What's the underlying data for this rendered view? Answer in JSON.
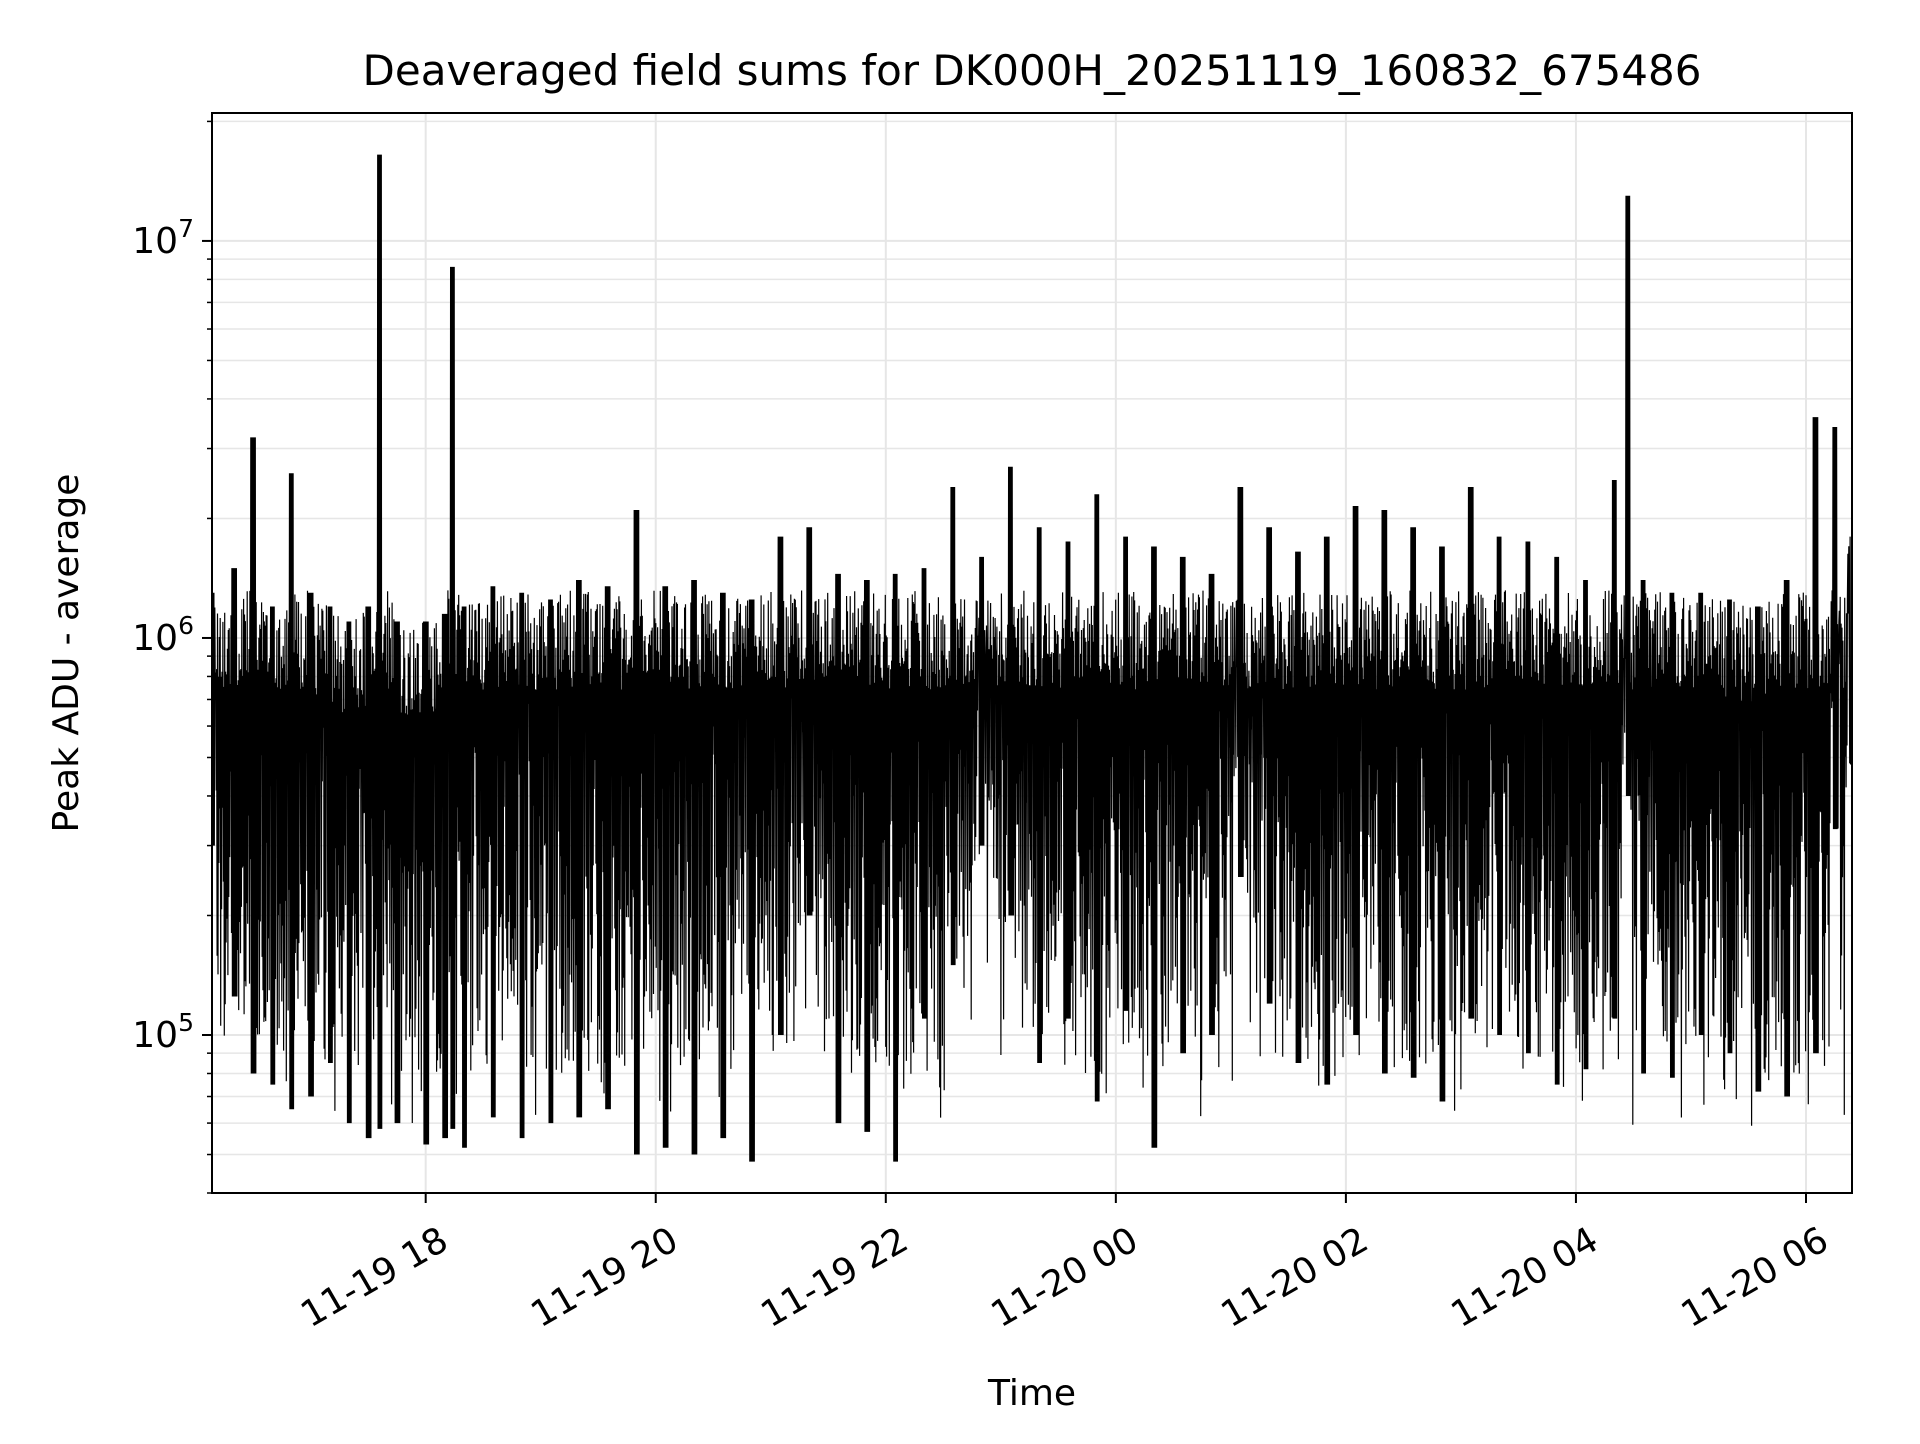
{
  "chart_data": {
    "type": "line",
    "title": "Deaveraged field sums for DK000H_20251119_160832_675486",
    "xlabel": "Time",
    "ylabel": "Peak ADU - average",
    "yscale": "log",
    "ylim": [
      40000,
      21000000
    ],
    "xlim": [
      "2025-11-19T16:08:32",
      "2025-11-20T06:24:00"
    ],
    "grid": true,
    "line_color": "#000000",
    "grid_color": "#e6e6e6",
    "x_ticks": [
      {
        "value": "2025-11-19T18:00:00",
        "label": "11-19 18"
      },
      {
        "value": "2025-11-19T20:00:00",
        "label": "11-19 20"
      },
      {
        "value": "2025-11-19T22:00:00",
        "label": "11-19 22"
      },
      {
        "value": "2025-11-20T00:00:00",
        "label": "11-20 00"
      },
      {
        "value": "2025-11-20T02:00:00",
        "label": "11-20 02"
      },
      {
        "value": "2025-11-20T04:00:00",
        "label": "11-20 04"
      },
      {
        "value": "2025-11-20T06:00:00",
        "label": "11-20 06"
      }
    ],
    "y_ticks": [
      {
        "value": 100000,
        "base": "10",
        "exp": "5"
      },
      {
        "value": 1000000,
        "base": "10",
        "exp": "6"
      },
      {
        "value": 10000000,
        "base": "10",
        "exp": "7"
      }
    ],
    "series": [
      {
        "x": [
          "2025-11-19T16:08:32",
          "2025-11-19T16:20:00",
          "2025-11-19T16:30:00",
          "2025-11-19T16:40:00",
          "2025-11-19T16:50:00",
          "2025-11-19T17:00:00",
          "2025-11-19T17:10:00",
          "2025-11-19T17:20:00",
          "2025-11-19T17:30:00",
          "2025-11-19T17:36:00",
          "2025-11-19T17:45:00",
          "2025-11-19T18:00:00",
          "2025-11-19T18:10:00",
          "2025-11-19T18:14:00",
          "2025-11-19T18:20:00",
          "2025-11-19T18:35:00",
          "2025-11-19T18:50:00",
          "2025-11-19T19:05:00",
          "2025-11-19T19:20:00",
          "2025-11-19T19:35:00",
          "2025-11-19T19:50:00",
          "2025-11-19T20:05:00",
          "2025-11-19T20:20:00",
          "2025-11-19T20:35:00",
          "2025-11-19T20:50:00",
          "2025-11-19T21:05:00",
          "2025-11-19T21:20:00",
          "2025-11-19T21:35:00",
          "2025-11-19T21:50:00",
          "2025-11-19T22:05:00",
          "2025-11-19T22:20:00",
          "2025-11-19T22:35:00",
          "2025-11-19T22:50:00",
          "2025-11-19T23:05:00",
          "2025-11-19T23:20:00",
          "2025-11-19T23:35:00",
          "2025-11-19T23:50:00",
          "2025-11-20T00:05:00",
          "2025-11-20T00:20:00",
          "2025-11-20T00:35:00",
          "2025-11-20T00:50:00",
          "2025-11-20T01:05:00",
          "2025-11-20T01:20:00",
          "2025-11-20T01:35:00",
          "2025-11-20T01:50:00",
          "2025-11-20T02:05:00",
          "2025-11-20T02:20:00",
          "2025-11-20T02:35:00",
          "2025-11-20T02:50:00",
          "2025-11-20T03:05:00",
          "2025-11-20T03:20:00",
          "2025-11-20T03:35:00",
          "2025-11-20T03:50:00",
          "2025-11-20T04:05:00",
          "2025-11-20T04:20:00",
          "2025-11-20T04:27:00",
          "2025-11-20T04:35:00",
          "2025-11-20T04:50:00",
          "2025-11-20T05:05:00",
          "2025-11-20T05:20:00",
          "2025-11-20T05:35:00",
          "2025-11-20T05:50:00",
          "2025-11-20T06:05:00",
          "2025-11-20T06:15:00",
          "2025-11-20T06:24:00"
        ],
        "hi": [
          1300000,
          1500000,
          3200000,
          1200000,
          2600000,
          1300000,
          1200000,
          1100000,
          1200000,
          16500000,
          1100000,
          1100000,
          1150000,
          8600000,
          1200000,
          1350000,
          1300000,
          1250000,
          1400000,
          1350000,
          2100000,
          1350000,
          1400000,
          1300000,
          1250000,
          1800000,
          1900000,
          1450000,
          1400000,
          1450000,
          1500000,
          2400000,
          1600000,
          2700000,
          1900000,
          1750000,
          2300000,
          1800000,
          1700000,
          1600000,
          1450000,
          2400000,
          1900000,
          1650000,
          1800000,
          2150000,
          2100000,
          1900000,
          1700000,
          2400000,
          1800000,
          1750000,
          1600000,
          1400000,
          2500000,
          13000000,
          1400000,
          1300000,
          1300000,
          1250000,
          1200000,
          1400000,
          3600000,
          3400000,
          1800000
        ],
        "lo": [
          300000,
          125000,
          80000,
          75000,
          65000,
          70000,
          85000,
          60000,
          55000,
          58000,
          60000,
          53000,
          55000,
          58000,
          52000,
          62000,
          55000,
          60000,
          62000,
          65000,
          50000,
          52000,
          50000,
          55000,
          48000,
          100000,
          200000,
          60000,
          57000,
          48000,
          110000,
          150000,
          300000,
          200000,
          85000,
          110000,
          68000,
          115000,
          52000,
          90000,
          100000,
          250000,
          120000,
          85000,
          75000,
          100000,
          80000,
          78000,
          68000,
          110000,
          100000,
          90000,
          75000,
          82000,
          110000,
          400000,
          80000,
          78000,
          100000,
          90000,
          72000,
          70000,
          90000,
          330000,
          480000
        ]
      }
    ]
  }
}
